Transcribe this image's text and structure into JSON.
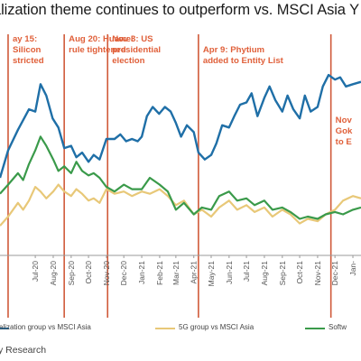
{
  "title": "alization theme continues to outperform vs. MSCI Asia Y",
  "source": "y Research",
  "colors": {
    "series_blue": "#1f6fa7",
    "series_green": "#3a9a4a",
    "series_yellow": "#e8c878",
    "event_line": "#d05a3a",
    "annotation": "#e0603a",
    "axis": "#9a9a9a"
  },
  "legend": [
    {
      "label": "alization group vs MSCI Asia",
      "color": "#1f6fa7"
    },
    {
      "label": "5G group vs MSCI Asia",
      "color": "#e8c878"
    },
    {
      "label": "Softw",
      "color": "#3a9a4a"
    }
  ],
  "events": [
    {
      "date": "2020-05-15",
      "lines": [
        "ay 15:",
        "Silicon",
        "stricted"
      ]
    },
    {
      "date": "2020-08-20",
      "lines": [
        "Aug 20: Huawei",
        "rule tightened"
      ]
    },
    {
      "date": "2020-11-03",
      "lines": [
        "Nov 3: US",
        "presidential",
        "election"
      ]
    },
    {
      "date": "2021-04-09",
      "lines": [
        "Apr 9: Phytium",
        "added to Entity List"
      ]
    },
    {
      "date": "2021-11-24",
      "lines": [
        "Nov",
        "Gok",
        "to E"
      ]
    }
  ],
  "chart_data": {
    "type": "line",
    "x_ticks": [
      "Jul-20",
      "Aug-20",
      "Sep-20",
      "Oct-20",
      "Nov-20",
      "Dec-20",
      "Jan-21",
      "Feb-21",
      "Mar-21",
      "Apr-21",
      "May-21",
      "Jun-21",
      "Jul-21",
      "Aug-21",
      "Sep-21",
      "Oct-21",
      "Nov-21",
      "Dec-21",
      "Jan-"
    ],
    "x_tick_dates": [
      "2020-07-01",
      "2020-08-01",
      "2020-09-01",
      "2020-10-01",
      "2020-11-01",
      "2020-12-01",
      "2021-01-01",
      "2021-02-01",
      "2021-03-01",
      "2021-04-01",
      "2021-05-01",
      "2021-06-01",
      "2021-07-01",
      "2021-08-01",
      "2021-09-01",
      "2021-10-01",
      "2021-11-01",
      "2021-12-01",
      "2022-01-01"
    ],
    "xlim": [
      "2020-05-01",
      "2022-01-15"
    ],
    "ylim": [
      0,
      100
    ],
    "series": [
      {
        "name": "alization group vs MSCI Asia",
        "color": "#1f6fa7",
        "points": [
          [
            "2020-05-01",
            34
          ],
          [
            "2020-05-15",
            46
          ],
          [
            "2020-06-01",
            55
          ],
          [
            "2020-06-20",
            64
          ],
          [
            "2020-07-01",
            63
          ],
          [
            "2020-07-10",
            75
          ],
          [
            "2020-07-20",
            70
          ],
          [
            "2020-07-31",
            60
          ],
          [
            "2020-08-10",
            56
          ],
          [
            "2020-08-20",
            47
          ],
          [
            "2020-09-01",
            48
          ],
          [
            "2020-09-10",
            43
          ],
          [
            "2020-09-20",
            45
          ],
          [
            "2020-10-01",
            41
          ],
          [
            "2020-10-10",
            44
          ],
          [
            "2020-10-20",
            42
          ],
          [
            "2020-11-01",
            51
          ],
          [
            "2020-11-15",
            51
          ],
          [
            "2020-11-25",
            53
          ],
          [
            "2020-12-05",
            50
          ],
          [
            "2020-12-15",
            51
          ],
          [
            "2020-12-25",
            50
          ],
          [
            "2021-01-01",
            52
          ],
          [
            "2021-01-10",
            61
          ],
          [
            "2021-01-20",
            65
          ],
          [
            "2021-01-31",
            62
          ],
          [
            "2021-02-10",
            65
          ],
          [
            "2021-02-20",
            63
          ],
          [
            "2021-03-01",
            58
          ],
          [
            "2021-03-10",
            52
          ],
          [
            "2021-03-20",
            57
          ],
          [
            "2021-04-01",
            54
          ],
          [
            "2021-04-09",
            45
          ],
          [
            "2021-04-20",
            42
          ],
          [
            "2021-05-01",
            44
          ],
          [
            "2021-05-10",
            49
          ],
          [
            "2021-05-20",
            57
          ],
          [
            "2021-06-01",
            56
          ],
          [
            "2021-06-10",
            61
          ],
          [
            "2021-06-20",
            66
          ],
          [
            "2021-07-01",
            67
          ],
          [
            "2021-07-10",
            71
          ],
          [
            "2021-07-20",
            61
          ],
          [
            "2021-08-01",
            69
          ],
          [
            "2021-08-10",
            74
          ],
          [
            "2021-08-20",
            68
          ],
          [
            "2021-09-01",
            63
          ],
          [
            "2021-09-10",
            70
          ],
          [
            "2021-09-20",
            64
          ],
          [
            "2021-10-01",
            60
          ],
          [
            "2021-10-10",
            70
          ],
          [
            "2021-10-20",
            63
          ],
          [
            "2021-11-01",
            65
          ],
          [
            "2021-11-10",
            74
          ],
          [
            "2021-11-20",
            79
          ],
          [
            "2021-12-01",
            77
          ],
          [
            "2021-12-10",
            78
          ],
          [
            "2021-12-20",
            74
          ],
          [
            "2022-01-01",
            75
          ],
          [
            "2022-01-15",
            76
          ]
        ]
      },
      {
        "name": "5G group vs MSCI Asia",
        "color": "#e8c878",
        "points": [
          [
            "2020-05-01",
            13
          ],
          [
            "2020-05-15",
            17
          ],
          [
            "2020-06-01",
            23
          ],
          [
            "2020-06-10",
            20
          ],
          [
            "2020-06-20",
            24
          ],
          [
            "2020-07-01",
            30
          ],
          [
            "2020-07-10",
            28
          ],
          [
            "2020-07-20",
            25
          ],
          [
            "2020-08-01",
            28
          ],
          [
            "2020-08-10",
            31
          ],
          [
            "2020-08-20",
            28
          ],
          [
            "2020-09-01",
            26
          ],
          [
            "2020-09-10",
            29
          ],
          [
            "2020-09-20",
            27
          ],
          [
            "2020-10-01",
            24
          ],
          [
            "2020-10-10",
            25
          ],
          [
            "2020-10-20",
            23
          ],
          [
            "2020-11-01",
            29
          ],
          [
            "2020-11-15",
            27
          ],
          [
            "2020-12-01",
            28
          ],
          [
            "2020-12-15",
            26
          ],
          [
            "2021-01-01",
            28
          ],
          [
            "2021-01-15",
            27
          ],
          [
            "2021-02-01",
            29
          ],
          [
            "2021-02-15",
            26
          ],
          [
            "2021-03-01",
            22
          ],
          [
            "2021-03-15",
            24
          ],
          [
            "2021-04-01",
            18
          ],
          [
            "2021-04-15",
            20
          ],
          [
            "2021-05-01",
            17
          ],
          [
            "2021-05-15",
            21
          ],
          [
            "2021-06-01",
            24
          ],
          [
            "2021-06-15",
            20
          ],
          [
            "2021-07-01",
            22
          ],
          [
            "2021-07-15",
            19
          ],
          [
            "2021-08-01",
            21
          ],
          [
            "2021-08-15",
            17
          ],
          [
            "2021-09-01",
            20
          ],
          [
            "2021-09-15",
            18
          ],
          [
            "2021-10-01",
            14
          ],
          [
            "2021-10-15",
            16
          ],
          [
            "2021-11-01",
            15
          ],
          [
            "2021-11-15",
            18
          ],
          [
            "2021-12-01",
            20
          ],
          [
            "2021-12-15",
            24
          ],
          [
            "2022-01-01",
            26
          ],
          [
            "2022-01-15",
            25
          ]
        ]
      },
      {
        "name": "Softw",
        "color": "#3a9a4a",
        "points": [
          [
            "2020-05-01",
            27
          ],
          [
            "2020-05-15",
            31
          ],
          [
            "2020-06-01",
            36
          ],
          [
            "2020-06-10",
            33
          ],
          [
            "2020-06-20",
            40
          ],
          [
            "2020-07-01",
            46
          ],
          [
            "2020-07-10",
            52
          ],
          [
            "2020-07-20",
            48
          ],
          [
            "2020-08-01",
            42
          ],
          [
            "2020-08-10",
            37
          ],
          [
            "2020-08-20",
            39
          ],
          [
            "2020-09-01",
            36
          ],
          [
            "2020-09-10",
            41
          ],
          [
            "2020-09-20",
            37
          ],
          [
            "2020-10-01",
            35
          ],
          [
            "2020-10-10",
            36
          ],
          [
            "2020-10-20",
            34
          ],
          [
            "2020-11-01",
            30
          ],
          [
            "2020-11-15",
            28
          ],
          [
            "2020-12-01",
            31
          ],
          [
            "2020-12-15",
            29
          ],
          [
            "2021-01-01",
            29
          ],
          [
            "2021-01-15",
            34
          ],
          [
            "2021-02-01",
            31
          ],
          [
            "2021-02-15",
            28
          ],
          [
            "2021-03-01",
            20
          ],
          [
            "2021-03-15",
            23
          ],
          [
            "2021-04-01",
            18
          ],
          [
            "2021-04-15",
            21
          ],
          [
            "2021-05-01",
            20
          ],
          [
            "2021-05-15",
            26
          ],
          [
            "2021-06-01",
            28
          ],
          [
            "2021-06-15",
            24
          ],
          [
            "2021-07-01",
            25
          ],
          [
            "2021-07-15",
            22
          ],
          [
            "2021-08-01",
            24
          ],
          [
            "2021-08-15",
            20
          ],
          [
            "2021-09-01",
            21
          ],
          [
            "2021-09-15",
            19
          ],
          [
            "2021-10-01",
            16
          ],
          [
            "2021-10-15",
            17
          ],
          [
            "2021-11-01",
            16
          ],
          [
            "2021-11-15",
            18
          ],
          [
            "2021-12-01",
            19
          ],
          [
            "2021-12-15",
            18
          ],
          [
            "2022-01-01",
            20
          ],
          [
            "2022-01-15",
            21
          ]
        ]
      }
    ]
  }
}
